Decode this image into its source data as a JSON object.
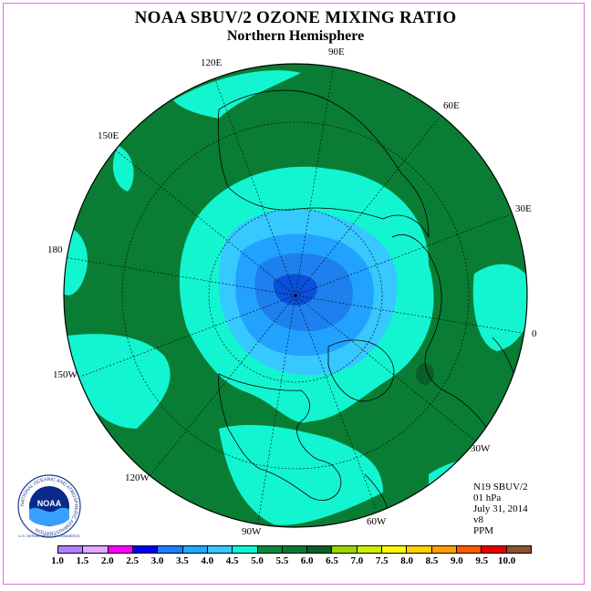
{
  "header": {
    "title": "NOAA SBUV/2 OZONE MIXING RATIO",
    "subtitle": "Northern Hemisphere"
  },
  "map": {
    "longitude_labels": [
      "90E",
      "60E",
      "30E",
      "0",
      "30W",
      "60W",
      "90W",
      "120W",
      "150W",
      "180",
      "150E",
      "120E"
    ],
    "colors": {
      "ocean_ring": "#0a7d34",
      "band_4_5_to_5_0": "#12f5d0",
      "band_4_0_to_4_5": "#33c8ff",
      "band_3_5_to_4_0": "#22a2ff",
      "band_3_0_to_3_5": "#1e80ee",
      "band_5_5_to_6_0": "#0b5d2a"
    }
  },
  "info": {
    "satellite": "N19 SBUV/2",
    "level": "01 hPa",
    "date": "July 31, 2014",
    "version": "v8",
    "unit": "PPM"
  },
  "colorbar": {
    "ticks": [
      "1.0",
      "1.5",
      "2.0",
      "2.5",
      "3.0",
      "3.5",
      "4.0",
      "4.5",
      "5.0",
      "5.5",
      "6.0",
      "6.5",
      "7.0",
      "7.5",
      "8.0",
      "8.5",
      "9.0",
      "9.5",
      "10.0"
    ],
    "colors": [
      "#b27fff",
      "#e0a8ff",
      "#ff00ff",
      "#0000f0",
      "#1e7fff",
      "#22a8ff",
      "#36c8ff",
      "#12f5d0",
      "#0a8a3a",
      "#0a7a33",
      "#0b5d2a",
      "#99d600",
      "#ccee00",
      "#ffff00",
      "#ffd000",
      "#ffa000",
      "#ff5a00",
      "#e60000",
      "#8a5230"
    ]
  },
  "logo": {
    "text": "NOAA",
    "ring_text": "NATIONAL OCEANIC AND ATMOSPHERIC ADMINISTRATION",
    "bottom_text": "U.S. DEPARTMENT OF COMMERCE"
  }
}
